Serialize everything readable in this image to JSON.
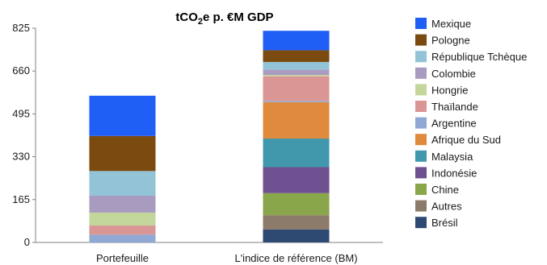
{
  "chart_data": {
    "type": "bar",
    "stacked": true,
    "title": {
      "main": "tCO",
      "sub": "2",
      "rest": "e p. €M GDP"
    },
    "categories": [
      "Portefeuille",
      "L'indice de référence (BM)"
    ],
    "ylim": [
      0,
      825
    ],
    "yticks": [
      "0",
      "165",
      "330",
      "495",
      "660",
      "825"
    ],
    "ytick_values": [
      0,
      165,
      330,
      495,
      660,
      825
    ],
    "grid": false,
    "legend_position": "right",
    "series": [
      {
        "name": "Brésil",
        "color": "#2e4a73",
        "values": [
          0,
          50
        ]
      },
      {
        "name": "Autres",
        "color": "#8c7b6b",
        "values": [
          0,
          55
        ]
      },
      {
        "name": "Chine",
        "color": "#8aa64a",
        "values": [
          0,
          85
        ]
      },
      {
        "name": "Indonésie",
        "color": "#6e5090",
        "values": [
          0,
          100
        ]
      },
      {
        "name": "Malaysia",
        "color": "#4198ad",
        "values": [
          0,
          110
        ]
      },
      {
        "name": "Afrique du Sud",
        "color": "#e08a3e",
        "values": [
          0,
          140
        ]
      },
      {
        "name": "Argentine",
        "color": "#8fa8d4",
        "values": [
          30,
          5
        ]
      },
      {
        "name": "Thaïlande",
        "color": "#d99694",
        "values": [
          35,
          95
        ]
      },
      {
        "name": "Hongrie",
        "color": "#c3d69b",
        "values": [
          50,
          5
        ]
      },
      {
        "name": "Colombie",
        "color": "#a99bc0",
        "values": [
          65,
          20
        ]
      },
      {
        "name": "République Tchèque",
        "color": "#93c3d6",
        "values": [
          95,
          30
        ]
      },
      {
        "name": "Pologne",
        "color": "#7a4a0e",
        "values": [
          135,
          45
        ]
      },
      {
        "name": "Mexique",
        "color": "#1f5ff5",
        "values": [
          155,
          75
        ]
      }
    ],
    "legend_order": [
      "Mexique",
      "Pologne",
      "République Tchèque",
      "Colombie",
      "Hongrie",
      "Thaïlande",
      "Argentine",
      "Afrique du Sud",
      "Malaysia",
      "Indonésie",
      "Chine",
      "Autres",
      "Brésil"
    ]
  }
}
